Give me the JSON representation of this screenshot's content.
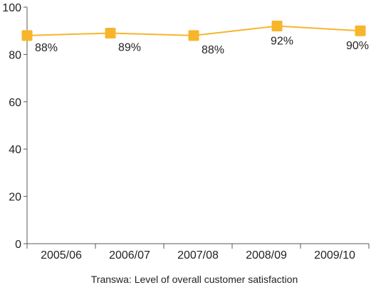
{
  "chart_data": {
    "type": "line",
    "title": "",
    "caption": "Transwa: Level of overall customer satisfaction",
    "xlabel": "",
    "ylabel": "",
    "categories": [
      "2005/06",
      "2006/07",
      "2007/08",
      "2008/09",
      "2009/10"
    ],
    "series": [
      {
        "values": [
          88,
          89,
          88,
          92,
          90
        ],
        "data_labels": [
          "88%",
          "89%",
          "88%",
          "92%",
          "90%"
        ],
        "color": "#f7b52c",
        "marker": "square"
      }
    ],
    "ylim": [
      0,
      100
    ],
    "yticks": [
      0,
      20,
      40,
      60,
      80,
      100
    ],
    "grid": false,
    "legend": "none"
  }
}
